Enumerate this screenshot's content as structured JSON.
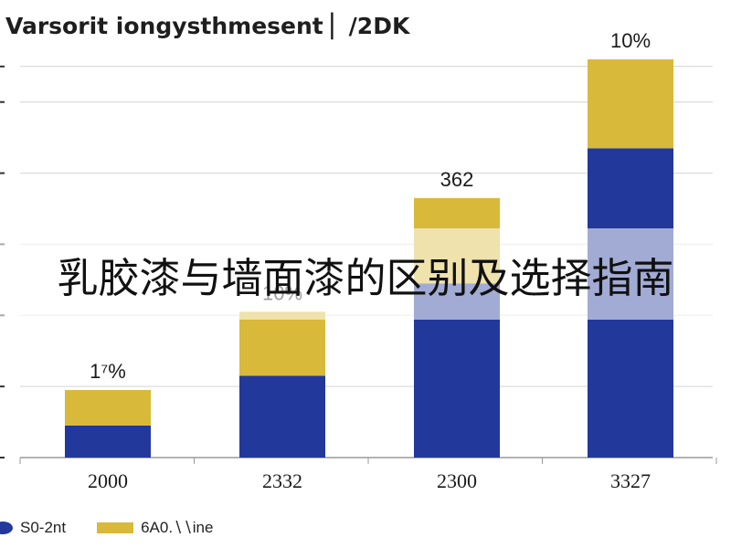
{
  "chart_data": {
    "type": "bar",
    "stacked": true,
    "title": "Varsorit iongysthmesent ▏/2DK",
    "categories": [
      "2000",
      "2332",
      "2300",
      "3327"
    ],
    "series": [
      {
        "name": "S0-2nt",
        "color": "#22389a",
        "values": [
          4.5,
          11.5,
          24.5,
          43.5
        ]
      },
      {
        "name": "6A0.∖∖ine",
        "color": "#d9b93a",
        "values": [
          5.0,
          9.0,
          12.0,
          12.5
        ]
      }
    ],
    "data_labels": [
      "1⁷%",
      "10%",
      "362",
      "10%"
    ],
    "ylim": [
      0,
      56
    ],
    "yticks": [
      0,
      10,
      20,
      30,
      40,
      50,
      55
    ],
    "grid": true,
    "legend_position": "bottom-left"
  },
  "overlay": {
    "text": "乳胶漆与墙面漆的区别及选择指南"
  }
}
